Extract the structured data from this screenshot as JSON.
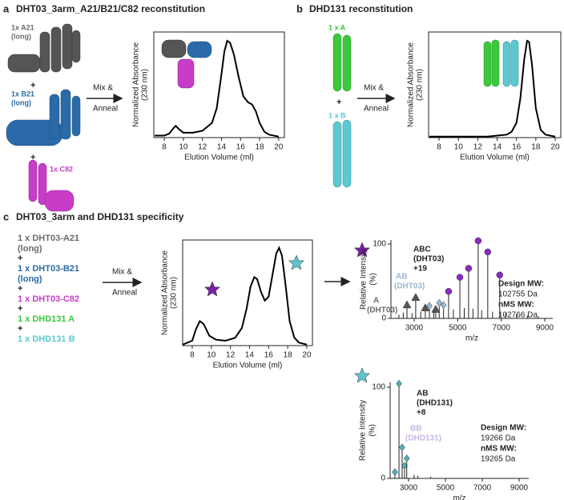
{
  "panels": [
    {
      "letter": "a",
      "title": "DHT03_3arm_A21/B21/C82 reconstitution",
      "components": [
        [
          "1x A21",
          "(long)"
        ],
        [
          "1x B21",
          "(long)"
        ],
        [
          "1x C82"
        ]
      ],
      "separator": "+",
      "action": [
        "Mix &",
        "Anneal"
      ]
    },
    {
      "letter": "b",
      "title": "DHD131 reconstitution",
      "components": [
        [
          "1 x A"
        ],
        [
          "1 x B"
        ]
      ],
      "separator": "+",
      "action": [
        "Mix &",
        "Anneal"
      ]
    },
    {
      "letter": "c",
      "title": "DHT03_3arm and DHD131 specificity",
      "components": [
        [
          "1 x DHT03-A21",
          "(long)"
        ],
        [
          "1 x DHT03-B21",
          "(long)"
        ],
        [
          "1 x DHT03-C82"
        ],
        [
          "1 x DHD131 A"
        ],
        [
          "1 x DHD131 B"
        ]
      ],
      "separator": "+",
      "action": [
        "Mix &",
        "Anneal"
      ]
    }
  ],
  "chart_data": [
    {
      "type": "line",
      "xlabel": "Elution Volume (ml)",
      "ylabel": [
        "Normalized Absorbance",
        "(230 nm)"
      ],
      "color": "#000000",
      "x": [
        7,
        8,
        8.5,
        9,
        9.2,
        9.5,
        10,
        11,
        12,
        13,
        13.5,
        14,
        14.3,
        14.6,
        14.9,
        15.3,
        15.8,
        16.3,
        16.8,
        17.2,
        17.6,
        18,
        18.5,
        19,
        19.5,
        20
      ],
      "values": [
        0.02,
        0.02,
        0.04,
        0.1,
        0.12,
        0.09,
        0.05,
        0.05,
        0.07,
        0.15,
        0.3,
        0.65,
        0.88,
        0.99,
        0.97,
        0.85,
        0.62,
        0.42,
        0.36,
        0.34,
        0.27,
        0.15,
        0.06,
        0.03,
        0.02,
        0.01
      ],
      "xlim": [
        6.9,
        20.6
      ],
      "xticks": [
        8,
        10,
        12,
        14,
        16,
        18,
        20
      ],
      "ylim": [
        0,
        1.08
      ]
    },
    {
      "type": "line",
      "xlabel": "Elution Volume (ml)",
      "ylabel": [
        "Normalized Absorbance",
        "(230 nm)"
      ],
      "color": "#000000",
      "x": [
        7,
        8,
        10,
        12,
        13,
        14,
        15,
        15.5,
        16,
        16.4,
        16.8,
        17.1,
        17.3,
        17.6,
        18,
        18.5,
        19,
        20
      ],
      "values": [
        0.01,
        0.01,
        0.01,
        0.01,
        0.01,
        0.02,
        0.03,
        0.06,
        0.15,
        0.4,
        0.8,
        0.99,
        0.98,
        0.75,
        0.3,
        0.08,
        0.03,
        0.01
      ],
      "xlim": [
        6.92,
        20.58
      ],
      "xticks": [
        8,
        10,
        12,
        14,
        16,
        18,
        20
      ],
      "ylim": [
        0,
        1.08
      ]
    },
    {
      "type": "line",
      "xlabel": "Elution Volume (ml)",
      "ylabel": [
        "Normalized Absorbance",
        "(230 nm)"
      ],
      "color": "#000000",
      "x": [
        7,
        8,
        8.4,
        8.8,
        9.2,
        9.8,
        10.5,
        11.5,
        12.5,
        13.2,
        13.7,
        14.1,
        14.5,
        14.8,
        15.2,
        15.6,
        16,
        16.4,
        16.8,
        17.1,
        17.4,
        17.8,
        18.2,
        18.7,
        19.2,
        20
      ],
      "values": [
        0.01,
        0.05,
        0.17,
        0.25,
        0.22,
        0.1,
        0.06,
        0.05,
        0.08,
        0.18,
        0.38,
        0.6,
        0.7,
        0.68,
        0.55,
        0.46,
        0.5,
        0.72,
        0.94,
        1.0,
        0.92,
        0.6,
        0.25,
        0.08,
        0.03,
        0.01
      ],
      "xlim": [
        7.0,
        20.59
      ],
      "xticks": [
        8,
        10,
        12,
        14,
        16,
        18,
        20
      ],
      "ylim": [
        0,
        1.08
      ]
    },
    {
      "type": "stem",
      "xlabel": "m/z",
      "ylabel": [
        "Relative Intensity",
        "(%)"
      ],
      "xlim": [
        1933,
        9368
      ],
      "xticks": [
        3000,
        5000,
        7000,
        9000
      ],
      "ylim": [
        0,
        105.4
      ],
      "yticks": [
        0,
        100
      ],
      "series": [
        {
          "marker": "circle",
          "color": "#8a2ac0",
          "x": [
            4580,
            5100,
            5500,
            5940,
            6380,
            6930
          ],
          "values": [
            32,
            51,
            63,
            100,
            85,
            54
          ]
        },
        {
          "marker": "triangle",
          "color": "#555555",
          "x": [
            2670,
            3070,
            3510,
            3990
          ],
          "values": [
            14,
            24,
            10,
            8
          ]
        },
        {
          "marker": "diamond",
          "color": "#9bb8d2",
          "x": [
            3700,
            4150,
            4350
          ],
          "values": [
            12,
            16,
            13
          ]
        },
        {
          "color": "#222222",
          "x": [
            2300,
            2500,
            2900,
            3300,
            3900,
            4800,
            5300,
            5700,
            6100,
            6600,
            7200,
            7700,
            8200,
            8700
          ],
          "values": [
            5,
            8,
            7,
            9,
            10,
            12,
            14,
            13,
            11,
            9,
            7,
            5,
            4,
            3
          ]
        }
      ],
      "annotations": [
        [
          "ABC",
          "(DHT03)",
          "+19"
        ],
        [
          "AB",
          "(DHT03)"
        ],
        [
          "A",
          "(DHT03)"
        ],
        [
          "Design MW:",
          "102755 Da",
          "nMS MW:",
          "102766 Da"
        ]
      ]
    },
    {
      "type": "stem",
      "xlabel": "m/z",
      "ylabel": [
        "Relative Intensity",
        "(%)"
      ],
      "xlim": [
        2000,
        9522
      ],
      "xticks": [
        3000,
        5000,
        7000,
        9000
      ],
      "ylim": [
        0,
        105.3
      ],
      "yticks": [
        0,
        100
      ],
      "series": [
        {
          "marker": "diamond",
          "color": "#4fb0b8",
          "x": [
            2260,
            2480,
            2650,
            2780,
            2900
          ],
          "values": [
            3,
            100,
            30,
            10,
            18
          ]
        },
        {
          "color": "#222222",
          "x": [
            3300,
            3500,
            4200
          ],
          "values": [
            4,
            3,
            2
          ]
        }
      ],
      "annotations": [
        [
          "AB",
          "(DHD131)",
          "+8"
        ],
        [
          "BB",
          "(DHD131)"
        ],
        [
          "Design MW:",
          "19266 Da",
          "nMS MW:",
          "19265 Da"
        ]
      ]
    }
  ]
}
